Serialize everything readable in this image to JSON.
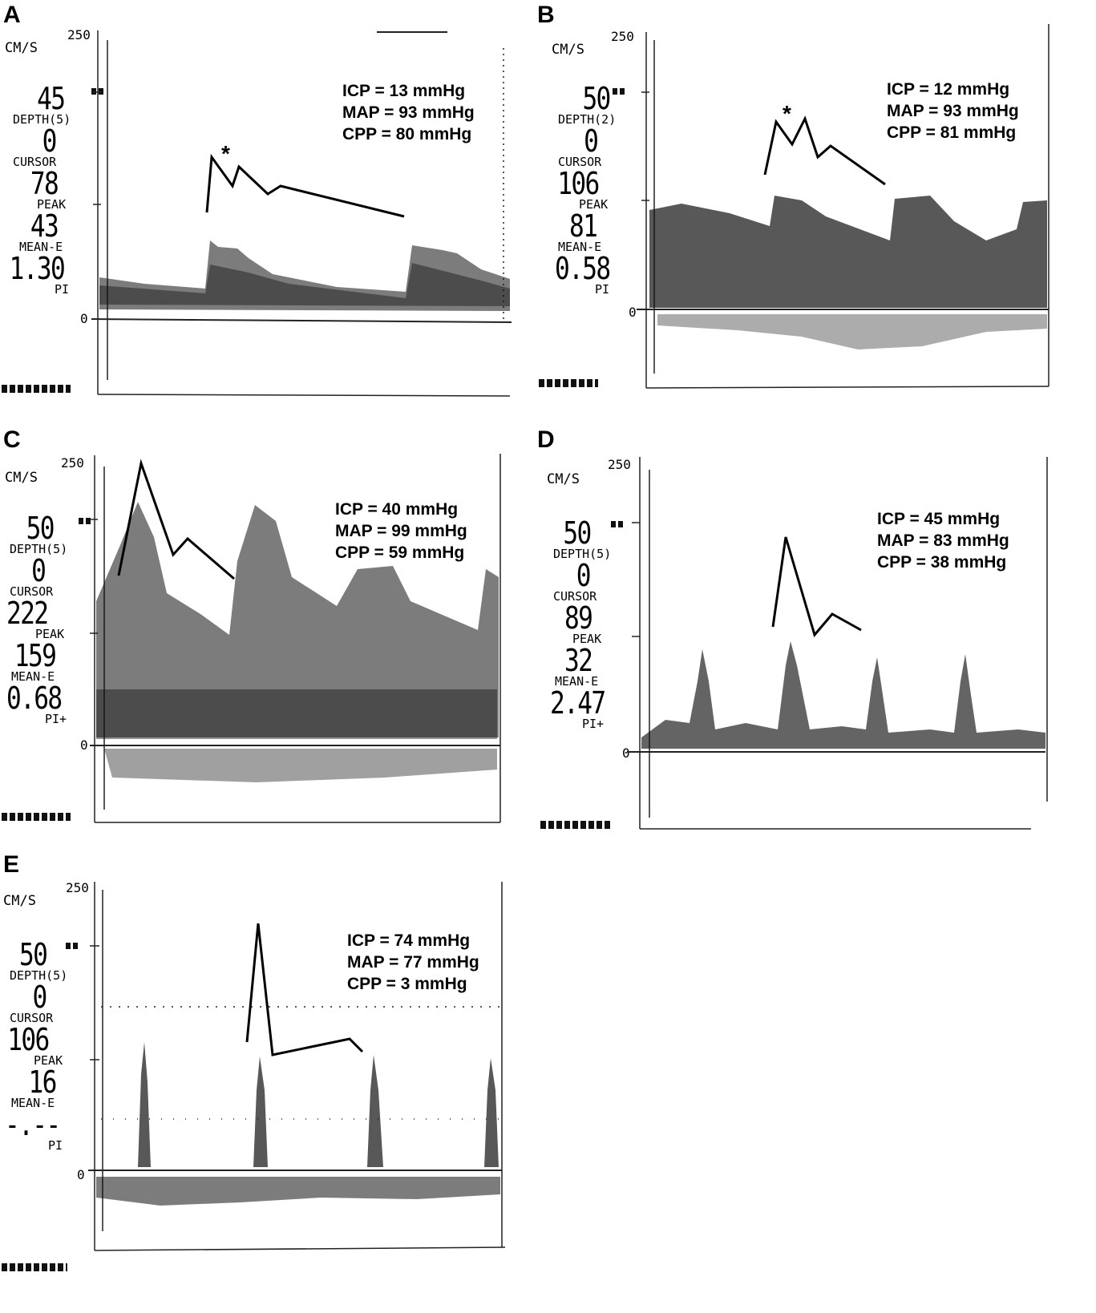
{
  "panels": [
    {
      "letter": "A",
      "unit": "CM/S",
      "top_tick": "250",
      "zero_tick": "0",
      "depth_val": "45",
      "depth_label": "DEPTH(5)",
      "cursor_val": "0",
      "cursor_label": "CURSOR",
      "peak_val": "78",
      "peak_label": "PEAK",
      "mean_val": "43",
      "mean_label": "MEAN-E",
      "pi_val": "1.30",
      "pi_label": "PI",
      "icp": "ICP = 13 mmHg",
      "map": "MAP = 93 mmHg",
      "cpp": "CPP = 80 mmHg",
      "asterisk": "*"
    },
    {
      "letter": "B",
      "unit": "CM/S",
      "top_tick": "250",
      "zero_tick": "0",
      "depth_val": "50",
      "depth_label": "DEPTH(2)",
      "cursor_val": "0",
      "cursor_label": "CURSOR",
      "peak_val": "106",
      "peak_label": "PEAK",
      "mean_val": "81",
      "mean_label": "MEAN-E",
      "pi_val": "0.58",
      "pi_label": "PI",
      "icp": "ICP = 12 mmHg",
      "map": "MAP = 93 mmHg",
      "cpp": "CPP = 81 mmHg",
      "asterisk": "*"
    },
    {
      "letter": "C",
      "unit": "CM/S",
      "top_tick": "250",
      "zero_tick": "0",
      "depth_val": "50",
      "depth_label": "DEPTH(5)",
      "cursor_val": "0",
      "cursor_label": "CURSOR",
      "peak_val": "222",
      "peak_label": "PEAK",
      "mean_val": "159",
      "mean_label": "MEAN-E",
      "pi_val": "0.68",
      "pi_label": "PI+",
      "icp": "ICP = 40 mmHg",
      "map": "MAP = 99 mmHg",
      "cpp": "CPP = 59 mmHg",
      "asterisk": ""
    },
    {
      "letter": "D",
      "unit": "CM/S",
      "top_tick": "250",
      "zero_tick": "0",
      "depth_val": "50",
      "depth_label": "DEPTH(5)",
      "cursor_val": "0",
      "cursor_label": "CURSOR",
      "peak_val": "89",
      "peak_label": "PEAK",
      "mean_val": "32",
      "mean_label": "MEAN-E",
      "pi_val": "2.47",
      "pi_label": "PI+",
      "icp": "ICP = 45 mmHg",
      "map": "MAP = 83 mmHg",
      "cpp": "CPP = 38 mmHg",
      "asterisk": ""
    },
    {
      "letter": "E",
      "unit": "CM/S",
      "top_tick": "250",
      "zero_tick": "0",
      "depth_val": "50",
      "depth_label": "DEPTH(5)",
      "cursor_val": "0",
      "cursor_label": "CURSOR",
      "peak_val": "106",
      "peak_label": "PEAK",
      "mean_val": "16",
      "mean_label": "MEAN-E",
      "pi_val": "-.--",
      "pi_label": "PI",
      "icp": "ICP = 74 mmHg",
      "map": "MAP = 77 mmHg",
      "cpp": "CPP = 3 mmHg",
      "asterisk": ""
    }
  ]
}
